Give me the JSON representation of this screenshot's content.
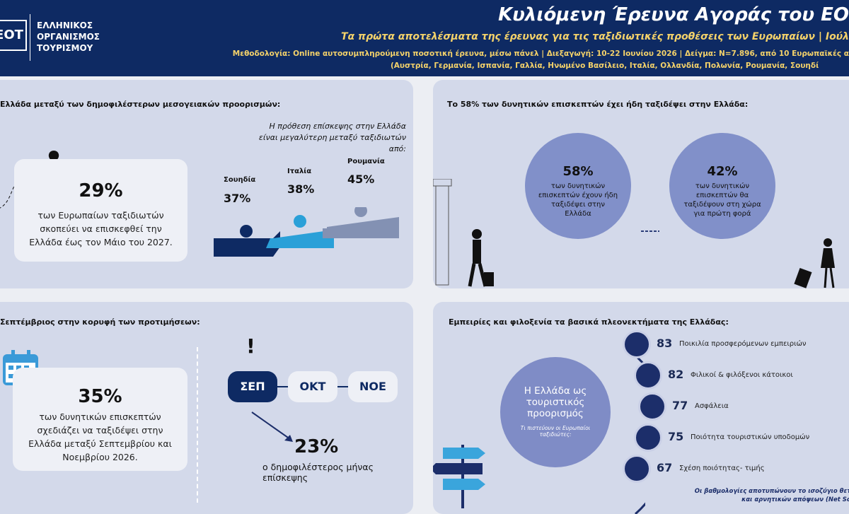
{
  "header": {
    "logo_mark": "ΕΟΤ",
    "logo_lines": [
      "ΕΛΛΗΝΙΚΟΣ",
      "ΟΡΓΑΝΙΣΜΟΣ",
      "ΤΟΥΡΙΣΜΟΥ"
    ],
    "title": "Κυλιόμενη Έρευνα Αγοράς του ΕΟ",
    "subtitle": "Τα πρώτα αποτελέσματα της έρευνας για τις ταξιδιωτικές προθέσεις των Ευρωπαίων  | Ιούλ",
    "methodology": [
      "Μεθοδολογία: Online αυτοσυμπληρούμενη ποσοτική έρευνα, μέσω πάνελ | Διεξαγωγή: 10-22 Ιουνίου 2026 | Δείγμα: Ν=7.896, από 10 Ευρωπαϊκές α",
      "(Αυστρία, Γερμανία, Ισπανία, Γαλλία, Ηνωμένο Βασίλειο, Ιταλία, Ολλανδία, Πολωνία, Ρουμανία, Σουηδί"
    ]
  },
  "panel1": {
    "title": "Ελλάδα μεταξύ των δημοφιλέστερων μεσογειακών προορισμών:",
    "stat": "29%",
    "text": "των Ευρωπαίων ταξιδιωτών σκοπεύει να επισκεφθεί την Ελλάδα έως τον Μάιο του 2027.",
    "note": "Η πρόθεση επίσκεψης στην Ελλάδα είναι μεγαλύτερη μεταξύ ταξιδιωτών από:",
    "countries": [
      {
        "name": "Σουηδία",
        "value": "37%"
      },
      {
        "name": "Ιταλία",
        "value": "38%"
      },
      {
        "name": "Ρουμανία",
        "value": "45%"
      }
    ]
  },
  "panel2": {
    "title": "Το 58% των δυνητικών επισκεπτών έχει ήδη ταξιδέψει στην Ελλάδα:",
    "circles": [
      {
        "value": "58%",
        "text": "των δυνητικών επισκεπτών έχουν ήδη ταξιδέψει στην Ελλάδα"
      },
      {
        "value": "42%",
        "text": "των δυνητικών επισκεπτών θα ταξιδέψουν στη χώρα για πρώτη φορά"
      }
    ]
  },
  "panel3": {
    "title": "Σεπτέμβριος στην κορυφή των προτιμήσεων:",
    "stat": "35%",
    "text": "των δυνητικών επισκεπτών σχεδιάζει να ταξιδέψει στην Ελλάδα μεταξύ Σεπτεμβρίου και Νοεμβρίου 2026.",
    "alert": "!",
    "months": [
      "ΣΕΠ",
      "ΟΚΤ",
      "ΝΟΕ"
    ],
    "month_stat": "23%",
    "month_text": "ο δημοφιλέστερος μήνας επίσκεψης"
  },
  "panel4": {
    "title": "Εμπειρίες και φιλοξενία τα βασικά πλεονεκτήματα της Ελλάδας:",
    "circle_title": "Η Ελλάδα ως τουριστικός προορισμός",
    "circle_sub": "Τι πιστεύουν οι Ευρωπαίοι ταξιδιώτες:",
    "items": [
      {
        "score": "83",
        "label": "Ποικιλία προσφερόμενων εμπειριών"
      },
      {
        "score": "82",
        "label": "Φιλικοί & φιλόξενοι κάτοικοι"
      },
      {
        "score": "77",
        "label": "Ασφάλεια"
      },
      {
        "score": "75",
        "label": "Ποιότητα τουριστικών υποδομών"
      },
      {
        "score": "67",
        "label": "Σχέση ποιότητας- τιμής"
      }
    ],
    "footnote": [
      "Οι βαθμολογίες αποτυπώνουν το ισοζύγιο θετικ",
      "και αρνητικών απόψεων (Net Scor"
    ]
  }
}
